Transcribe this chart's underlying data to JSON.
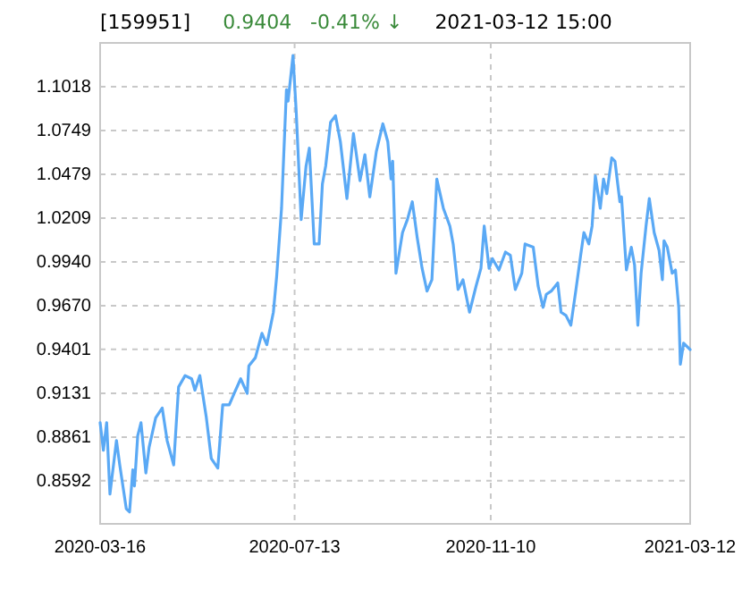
{
  "chart_data": {
    "type": "line",
    "title": "[159951]",
    "subtitle": "0.9404   -0.41% ↓",
    "annotations": [
      "2021-03-12 15:00"
    ],
    "x": [
      "2020-03-16",
      "2020-03-18",
      "2020-03-20",
      "2020-03-22",
      "2020-03-26",
      "2020-03-28",
      "2020-04-01",
      "2020-04-03",
      "2020-04-05",
      "2020-04-06",
      "2020-04-08",
      "2020-04-10",
      "2020-04-13",
      "2020-04-15",
      "2020-04-19",
      "2020-04-23",
      "2020-04-26",
      "2020-04-30",
      "2020-05-03",
      "2020-05-07",
      "2020-05-11",
      "2020-05-13",
      "2020-05-16",
      "2020-05-20",
      "2020-05-23",
      "2020-05-27",
      "2020-05-30",
      "2020-06-03",
      "2020-06-06",
      "2020-06-10",
      "2020-06-14",
      "2020-06-15",
      "2020-06-19",
      "2020-06-23",
      "2020-06-26",
      "2020-06-30",
      "2020-07-02",
      "2020-07-05",
      "2020-07-08",
      "2020-07-09",
      "2020-07-12",
      "2020-07-14",
      "2020-07-17",
      "2020-07-20",
      "2020-07-22",
      "2020-07-25",
      "2020-07-28",
      "2020-07-30",
      "2020-08-01",
      "2020-08-04",
      "2020-08-07",
      "2020-08-10",
      "2020-08-14",
      "2020-08-18",
      "2020-08-22",
      "2020-08-25",
      "2020-08-28",
      "2020-09-01",
      "2020-09-05",
      "2020-09-08",
      "2020-09-10",
      "2020-09-11",
      "2020-09-13",
      "2020-09-17",
      "2020-09-20",
      "2020-09-23",
      "2020-09-26",
      "2020-09-29",
      "2020-10-02",
      "2020-10-05",
      "2020-10-08",
      "2020-10-12",
      "2020-10-16",
      "2020-10-18",
      "2020-10-21",
      "2020-10-24",
      "2020-10-28",
      "2020-11-01",
      "2020-11-04",
      "2020-11-06",
      "2020-11-09",
      "2020-11-11",
      "2020-11-15",
      "2020-11-19",
      "2020-11-22",
      "2020-11-25",
      "2020-11-29",
      "2020-12-01",
      "2020-12-06",
      "2020-12-09",
      "2020-12-12",
      "2020-12-14",
      "2020-12-17",
      "2020-12-21",
      "2020-12-23",
      "2020-12-26",
      "2020-12-29",
      "2021-01-01",
      "2021-01-04",
      "2021-01-06",
      "2021-01-09",
      "2021-01-11",
      "2021-01-13",
      "2021-01-16",
      "2021-01-18",
      "2021-01-20",
      "2021-01-23",
      "2021-01-25",
      "2021-01-28",
      "2021-01-29",
      "2021-02-01",
      "2021-02-04",
      "2021-02-06",
      "2021-02-08",
      "2021-02-10",
      "2021-02-13",
      "2021-02-15",
      "2021-02-18",
      "2021-02-21",
      "2021-02-23",
      "2021-02-24",
      "2021-02-26",
      "2021-03-01",
      "2021-03-03",
      "2021-03-05",
      "2021-03-06",
      "2021-03-08",
      "2021-03-12"
    ],
    "series": [
      {
        "color": "#5aa9f5",
        "values": [
          0.895,
          0.878,
          0.895,
          0.851,
          0.884,
          0.869,
          0.842,
          0.84,
          0.866,
          0.856,
          0.887,
          0.895,
          0.864,
          0.88,
          0.898,
          0.904,
          0.884,
          0.869,
          0.917,
          0.924,
          0.922,
          0.915,
          0.924,
          0.898,
          0.873,
          0.867,
          0.906,
          0.906,
          0.913,
          0.922,
          0.913,
          0.93,
          0.935,
          0.95,
          0.943,
          0.963,
          0.985,
          1.027,
          1.1,
          1.093,
          1.121,
          1.086,
          1.02,
          1.053,
          1.064,
          1.005,
          1.005,
          1.042,
          1.053,
          1.08,
          1.084,
          1.068,
          1.033,
          1.073,
          1.044,
          1.06,
          1.034,
          1.062,
          1.079,
          1.068,
          1.045,
          1.056,
          0.987,
          1.012,
          1.02,
          1.031,
          1.009,
          0.99,
          0.976,
          0.983,
          1.045,
          1.027,
          1.016,
          1.005,
          0.977,
          0.983,
          0.963,
          0.979,
          0.99,
          1.016,
          0.99,
          0.996,
          0.989,
          1.0,
          0.998,
          0.977,
          0.987,
          1.005,
          1.003,
          0.979,
          0.966,
          0.974,
          0.976,
          0.981,
          0.963,
          0.961,
          0.955,
          0.976,
          0.998,
          1.012,
          1.005,
          1.016,
          1.047,
          1.027,
          1.045,
          1.036,
          1.058,
          1.056,
          1.031,
          1.034,
          0.989,
          1.003,
          0.992,
          0.955,
          0.987,
          1.016,
          1.033,
          1.012,
          1.001,
          0.983,
          1.007,
          1.003,
          0.987,
          0.989,
          0.966,
          0.931,
          0.944,
          0.94
        ]
      }
    ],
    "xlim": [
      "2020-03-16",
      "2021-03-12"
    ],
    "xticks": [
      {
        "value": "2020-03-16",
        "label": "2020-03-16"
      },
      {
        "value": "2020-07-13",
        "label": "2020-07-13"
      },
      {
        "value": "2020-11-10",
        "label": "2020-11-10"
      },
      {
        "value": "2021-03-12",
        "label": "2021-03-12"
      }
    ],
    "ylim": [
      0.8327,
      1.1288
    ],
    "yticks": [
      0.8592,
      0.8861,
      0.9131,
      {
        "value": 0.9401,
        "label": "0.9401"
      },
      {
        "value": 0.967,
        "label": "0.9670"
      },
      {
        "value": 0.994,
        "label": "0.9940"
      },
      1.0209,
      1.0479,
      1.0749,
      1.1018
    ],
    "grid": true,
    "marker": "none",
    "line_style": "solid"
  }
}
